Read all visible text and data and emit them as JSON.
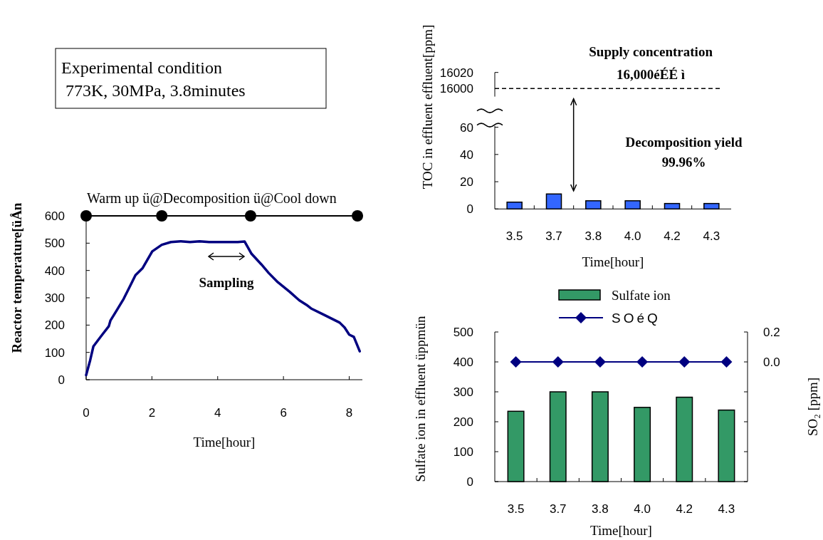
{
  "chart_data": [
    {
      "type": "line",
      "xlabel": "Time[hour]",
      "ylabel": "Reactor temperature[üÅn",
      "xlim": [
        0,
        8.4
      ],
      "ylim": [
        0,
        600
      ],
      "xticks": [
        0,
        2,
        4,
        6,
        8
      ],
      "yticks": [
        0,
        100,
        200,
        300,
        400,
        500,
        600
      ],
      "series": [
        {
          "color": "#000080",
          "x": [
            0,
            0.12,
            0.22,
            0.35,
            0.49,
            0.69,
            0.74,
            0.92,
            1.14,
            1.32,
            1.5,
            1.72,
            2.01,
            2.3,
            2.58,
            2.87,
            3.16,
            3.45,
            3.74,
            4.61,
            4.82,
            5.03,
            5.33,
            5.55,
            5.83,
            6.19,
            6.48,
            6.7,
            6.84,
            7.21,
            7.71,
            7.86,
            8.0,
            8.14,
            8.32
          ],
          "values": [
            17,
            70,
            122,
            143,
            165,
            196,
            217,
            252,
            296,
            339,
            383,
            409,
            470,
            494,
            504,
            507,
            504,
            507,
            504,
            504,
            506,
            461,
            422,
            391,
            357,
            322,
            291,
            274,
            261,
            239,
            209,
            191,
            165,
            157,
            104
          ]
        },
        {
          "color": "#000000",
          "marker": "circle",
          "x": [
            0,
            2.3,
            5.0,
            8.25
          ],
          "values": [
            600,
            600,
            600,
            600
          ]
        }
      ],
      "annotations": [
        "Experimental condition\n 773K, 30MPa, 3.8minutes",
        "Warm up ü@Decomposition ü@Cool down",
        "Sampling"
      ]
    },
    {
      "type": "other",
      "annotations": [
        "16020",
        "16000",
        "Supply concentration\n16,000éÉÉ ì"
      ]
    },
    {
      "type": "bar",
      "xlabel": "Time[hour]",
      "ylabel": "TOC in effluent effluent[ppm]",
      "categories": [
        "3.5",
        "3.7",
        "3.8",
        "4.0",
        "4.2",
        "4.3"
      ],
      "values": [
        5,
        11,
        6,
        6,
        4,
        4
      ],
      "color": "#3366ff",
      "ylim": [
        0,
        61
      ],
      "yticks": [
        0,
        20,
        40,
        60
      ],
      "annotations": [
        "Decomposition yield\n99.96%"
      ]
    },
    {
      "type": "bar",
      "xlabel": "Time[hour]",
      "ylabel": "Sulfate ion in effluent üppmün",
      "y2label": "SO₂ [ppm]",
      "categories": [
        "3.5",
        "3.7",
        "3.8",
        "4.0",
        "4.2",
        "4.3"
      ],
      "ylim": [
        0,
        500
      ],
      "yticks": [
        0,
        100,
        200,
        300,
        400,
        500
      ],
      "y2lim": [
        -0.8,
        0.2
      ],
      "y2ticks": [
        {
          "value": -0.8,
          "label": null
        },
        {
          "value": -0.6,
          "label": null
        },
        {
          "value": -0.4,
          "label": null
        },
        {
          "value": -0.2,
          "label": null
        },
        {
          "value": 0.0,
          "label": "0.0"
        },
        0.2
      ],
      "legend": "top",
      "series": [
        {
          "name": "Sulfate ion",
          "color": "#339966",
          "values": [
            235,
            300,
            300,
            248,
            282,
            239
          ]
        },
        {
          "name": "SOéQ",
          "type": "line",
          "axis": "y2",
          "color": "#000080",
          "marker": "diamond",
          "values": [
            0,
            0,
            0,
            0,
            0,
            0
          ]
        }
      ]
    }
  ]
}
